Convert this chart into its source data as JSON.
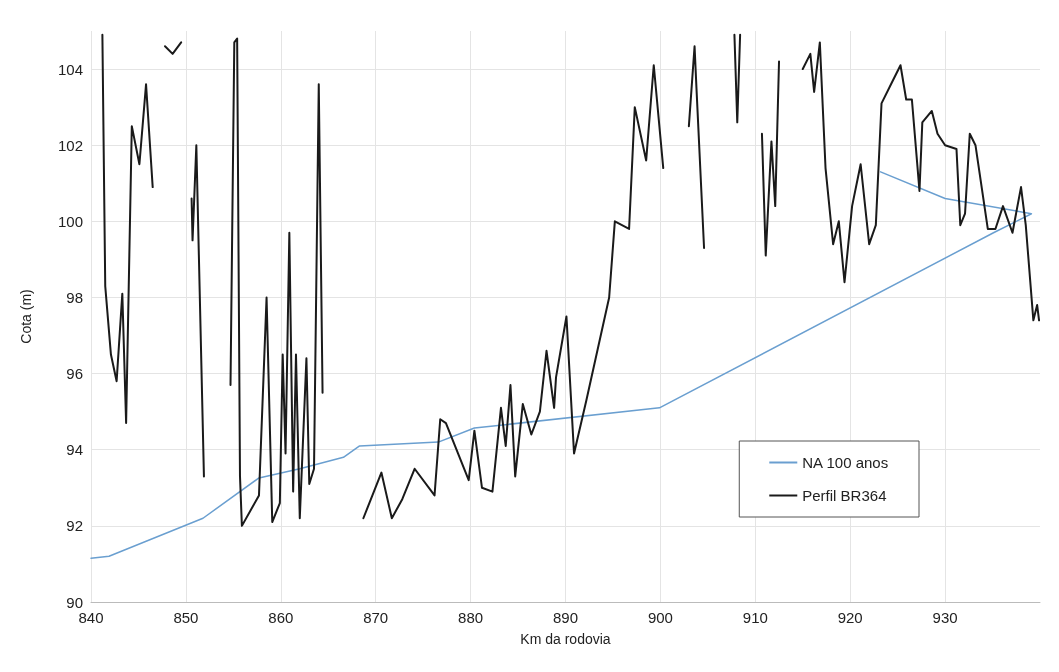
{
  "chart_data": {
    "type": "line",
    "xlabel": "Km da rodovia",
    "ylabel": "Cota (m)",
    "xlim": [
      840,
      940
    ],
    "xticks": [
      840,
      850,
      860,
      870,
      880,
      890,
      900,
      910,
      920,
      930
    ],
    "ylim": [
      90,
      105
    ],
    "yticks": [
      90,
      92,
      94,
      96,
      98,
      100,
      102,
      104
    ],
    "grid": true,
    "legend": "bottom right",
    "marker": "none",
    "line_style": "solid",
    "series": [
      {
        "name": "NA 100 anos",
        "color": "#6a9fd0",
        "x": [
          840,
          841.9,
          851.8,
          857.7,
          862,
          866.6,
          868.3,
          876.6,
          880.4,
          899.9,
          935.1,
          939.1,
          930,
          923.2
        ],
        "values": [
          91.15,
          91.2,
          92.2,
          93.26,
          93.5,
          93.8,
          94.1,
          94.2,
          94.57,
          95.1,
          99.7,
          100.2,
          100.6,
          101.3
        ]
      },
      {
        "name": "Perfil BR364",
        "color": "#1a1a1a",
        "x": [
          841.2,
          841.5,
          842.1,
          842.7,
          843.3,
          843.7,
          844.3,
          845.1,
          845.8,
          846.5,
          847.4,
          847.6,
          847.8,
          848.6,
          849.5,
          849.8,
          850,
          850.2,
          850.6,
          850.7,
          851.1,
          851.9,
          853.0,
          853.7,
          854.5,
          854.7,
          855.1,
          855.4,
          855.7,
          855.9,
          857.7,
          858.5,
          859.1,
          859.9,
          860.2,
          860.5,
          860.9,
          861.3,
          861.6,
          862.0,
          862.7,
          863.0,
          863.5,
          864.0,
          864.4,
          864.9,
          866.5,
          868.1,
          868.7,
          870.6,
          871.7,
          872.8,
          874.1,
          876.2,
          876.8,
          877.4,
          879.8,
          880.4,
          881.2,
          882.3,
          883.2,
          883.7,
          884.2,
          884.7,
          885.5,
          886.4,
          887.3,
          888.0,
          888.8,
          889.0,
          890.1,
          890.9,
          892.2,
          894.6,
          895.2,
          896.7,
          897.3,
          898.5,
          899.3,
          900.3,
          901.1,
          901.8,
          902.6,
          903.0,
          903.6,
          903.8,
          904.6,
          905.3,
          906.5,
          907.8,
          908.1,
          908.4,
          909.4,
          910.3,
          910.7,
          911.1,
          911.7,
          912.1,
          912.5,
          913.1,
          913.7,
          914.4,
          915.0,
          915.8,
          916.2,
          916.8,
          917.4,
          918.2,
          918.8,
          919.4,
          920.2,
          921.1,
          922.0,
          922.7,
          923.3,
          924.3,
          925.3,
          925.9,
          926.5,
          927.3,
          927.6,
          928.6,
          929.2,
          930.0,
          931.2,
          931.6,
          932.1,
          932.6,
          933.2,
          934.5,
          935.3,
          936.1,
          937.1,
          938.0,
          938.5,
          939.3,
          939.7,
          939.9
        ],
        "values": [
          104.9,
          98.3,
          96.5,
          95.8,
          98.1,
          94.7,
          102.5,
          101.5,
          103.6,
          100.9,
          null,
          null,
          104.6,
          104.4,
          104.7,
          null,
          null,
          null,
          100.6,
          99.5,
          102.0,
          93.3,
          null,
          null,
          null,
          95.7,
          104.7,
          104.8,
          93.3,
          92.0,
          92.8,
          98.0,
          92.1,
          92.6,
          96.5,
          93.9,
          99.7,
          92.9,
          96.5,
          92.2,
          96.4,
          93.1,
          93.5,
          103.6,
          95.5,
          null,
          null,
          null,
          92.2,
          93.4,
          92.2,
          92.7,
          93.5,
          92.8,
          94.8,
          94.7,
          93.2,
          94.5,
          93.0,
          92.9,
          95.1,
          94.1,
          95.7,
          93.3,
          95.2,
          94.4,
          95.0,
          96.6,
          95.1,
          95.9,
          97.5,
          93.9,
          95.3,
          98.0,
          100.0,
          99.8,
          103.0,
          101.6,
          104.1,
          101.4,
          null,
          null,
          null,
          102.5,
          104.6,
          103.5,
          99.3,
          null,
          null,
          104.9,
          102.6,
          104.9,
          null,
          null,
          102.3,
          99.1,
          102.1,
          100.4,
          104.2,
          null,
          null,
          null,
          104.0,
          104.4,
          103.4,
          104.7,
          101.4,
          99.4,
          100.0,
          98.4,
          100.4,
          101.5,
          99.4,
          99.9,
          103.1,
          103.6,
          104.1,
          103.2,
          103.2,
          100.8,
          102.6,
          102.9,
          102.3,
          102.0,
          101.9,
          99.9,
          100.2,
          102.3,
          102.0,
          99.8,
          99.8,
          100.4,
          99.7,
          100.9,
          99.9,
          97.4,
          97.8,
          97.4
        ]
      }
    ]
  }
}
